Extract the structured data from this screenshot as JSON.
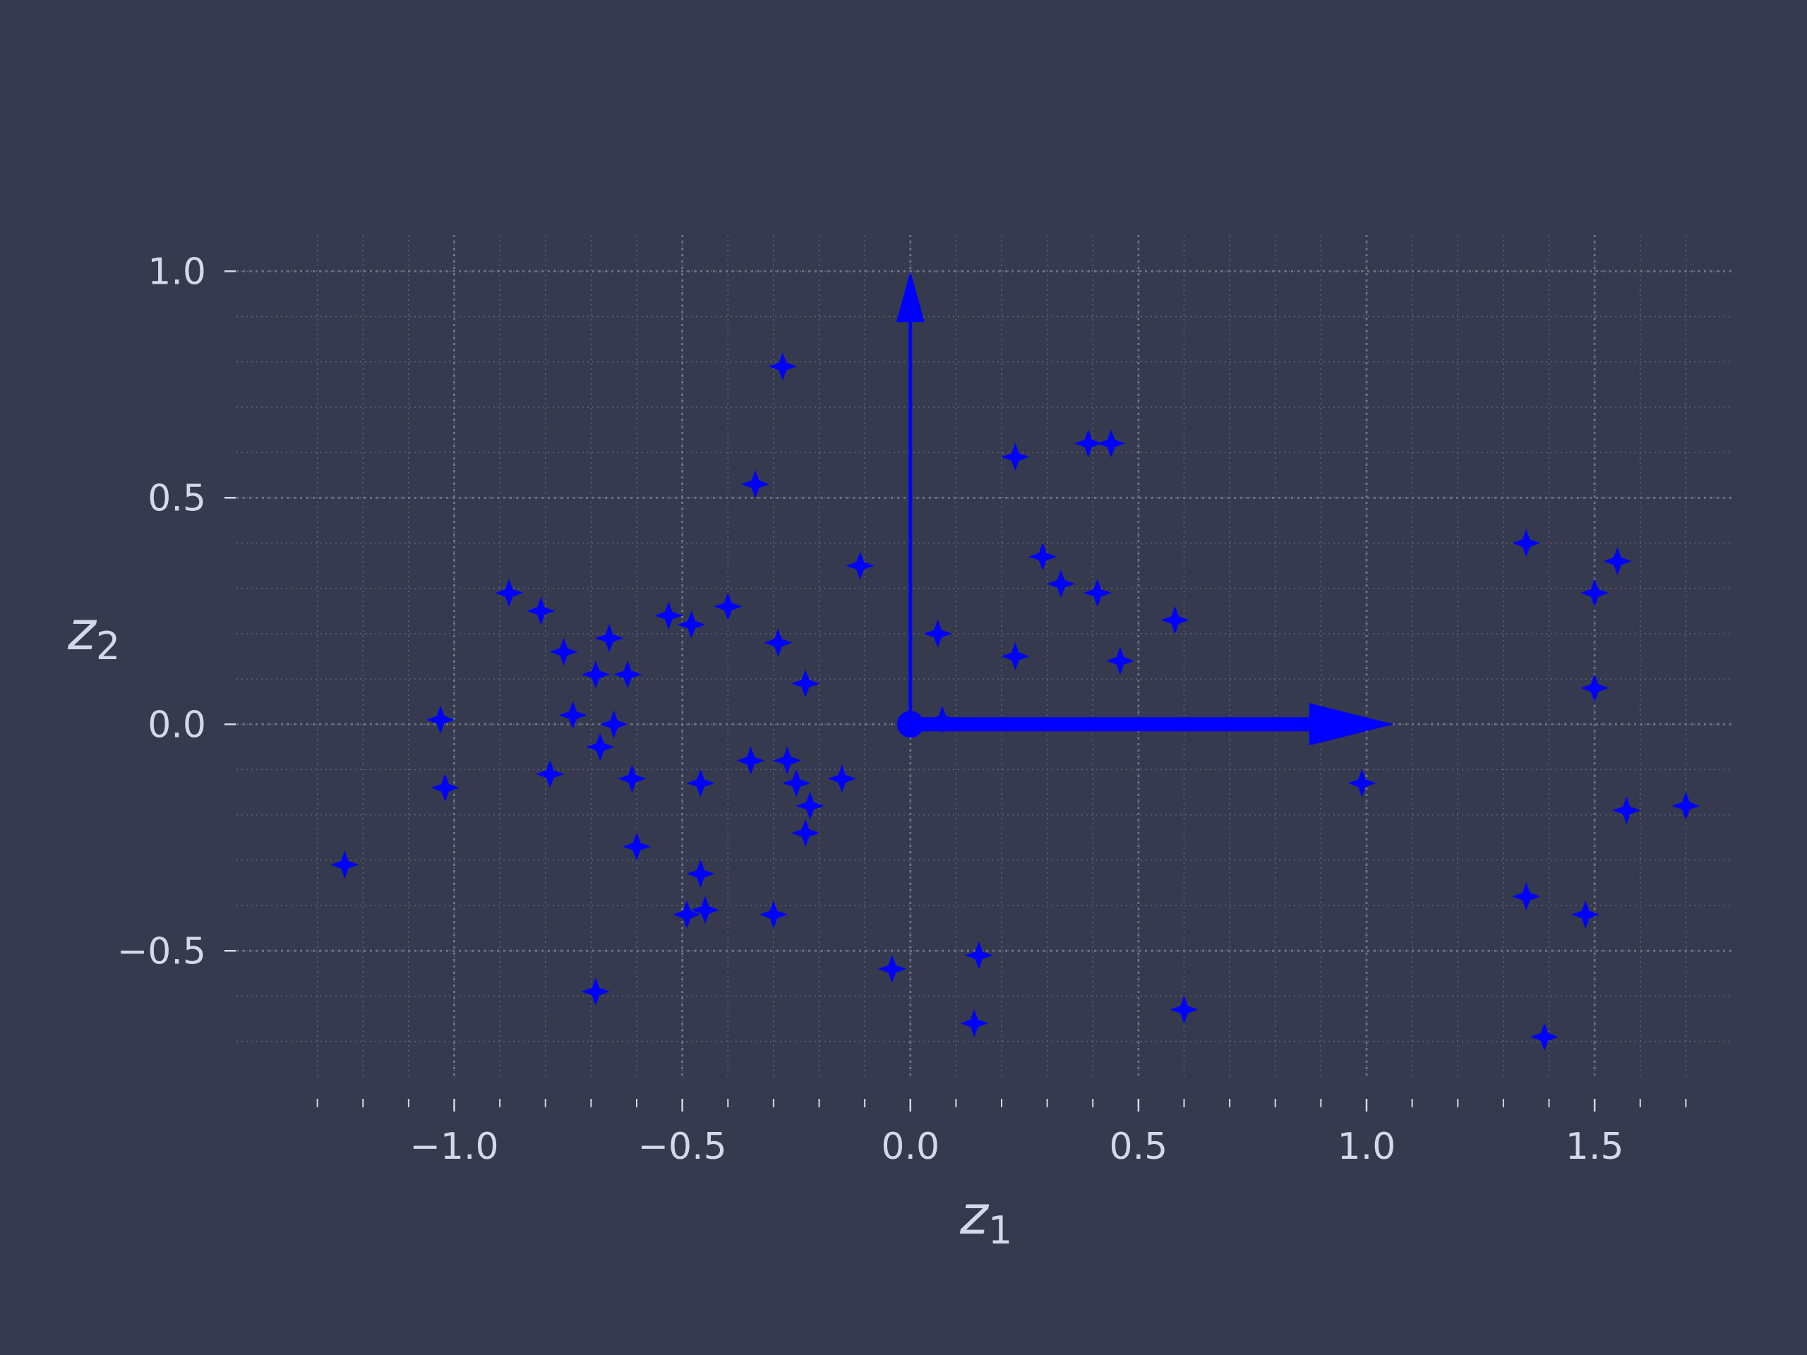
{
  "chart_data": {
    "type": "scatter",
    "title": "",
    "xlabel": "z",
    "xlabel_sub": "1",
    "ylabel": "z",
    "ylabel_sub": "2",
    "xlim": [
      -1.4,
      1.8
    ],
    "ylim": [
      -0.78,
      1.08
    ],
    "x_ticks": [
      -1.0,
      -0.5,
      0.0,
      0.5,
      1.0,
      1.5
    ],
    "x_tick_labels": [
      "−1.0",
      "−0.5",
      "0.0",
      "0.5",
      "1.0",
      "1.5"
    ],
    "y_ticks": [
      -0.5,
      0.0,
      0.5,
      1.0
    ],
    "y_tick_labels": [
      "−0.5",
      "0.0",
      "0.5",
      "1.0"
    ],
    "grid": true,
    "marker": "star",
    "colors": {
      "background": "#353a4f",
      "points": "#0000ff",
      "arrows": "#0000ff",
      "grid": "#6c7185",
      "text": "#d5d8ea"
    },
    "points": [
      [
        -1.24,
        -0.31
      ],
      [
        -1.03,
        0.01
      ],
      [
        -1.02,
        -0.14
      ],
      [
        -0.88,
        0.29
      ],
      [
        -0.81,
        0.25
      ],
      [
        -0.79,
        -0.11
      ],
      [
        -0.76,
        0.16
      ],
      [
        -0.74,
        0.02
      ],
      [
        -0.69,
        0.11
      ],
      [
        -0.69,
        -0.59
      ],
      [
        -0.68,
        -0.05
      ],
      [
        -0.66,
        0.19
      ],
      [
        -0.65,
        0.0
      ],
      [
        -0.62,
        0.11
      ],
      [
        -0.61,
        -0.12
      ],
      [
        -0.6,
        -0.27
      ],
      [
        -0.53,
        0.24
      ],
      [
        -0.49,
        -0.42
      ],
      [
        -0.48,
        0.22
      ],
      [
        -0.46,
        -0.33
      ],
      [
        -0.46,
        -0.13
      ],
      [
        -0.45,
        -0.41
      ],
      [
        -0.4,
        0.26
      ],
      [
        -0.35,
        -0.08
      ],
      [
        -0.34,
        0.53
      ],
      [
        -0.3,
        -0.42
      ],
      [
        -0.29,
        0.18
      ],
      [
        -0.28,
        0.79
      ],
      [
        -0.27,
        -0.08
      ],
      [
        -0.25,
        -0.13
      ],
      [
        -0.23,
        0.09
      ],
      [
        -0.23,
        -0.24
      ],
      [
        -0.22,
        -0.18
      ],
      [
        -0.15,
        -0.12
      ],
      [
        -0.11,
        0.35
      ],
      [
        -0.04,
        -0.54
      ],
      [
        0.06,
        0.2
      ],
      [
        0.07,
        0.01
      ],
      [
        0.15,
        -0.51
      ],
      [
        0.14,
        -0.66
      ],
      [
        0.23,
        0.59
      ],
      [
        0.23,
        0.15
      ],
      [
        0.29,
        0.37
      ],
      [
        0.33,
        0.31
      ],
      [
        0.39,
        0.62
      ],
      [
        0.41,
        0.29
      ],
      [
        0.44,
        0.62
      ],
      [
        0.46,
        0.14
      ],
      [
        0.58,
        0.23
      ],
      [
        0.6,
        -0.63
      ],
      [
        0.99,
        -0.13
      ],
      [
        1.35,
        0.4
      ],
      [
        1.35,
        -0.38
      ],
      [
        1.39,
        -0.69
      ],
      [
        1.48,
        -0.42
      ],
      [
        1.5,
        0.29
      ],
      [
        1.5,
        0.08
      ],
      [
        1.55,
        0.36
      ],
      [
        1.57,
        -0.19
      ],
      [
        1.7,
        -0.18
      ]
    ],
    "vectors": [
      {
        "from": [
          0,
          0
        ],
        "to": [
          0,
          1.0
        ]
      },
      {
        "from": [
          0,
          0
        ],
        "to": [
          1.06,
          0
        ]
      }
    ]
  }
}
